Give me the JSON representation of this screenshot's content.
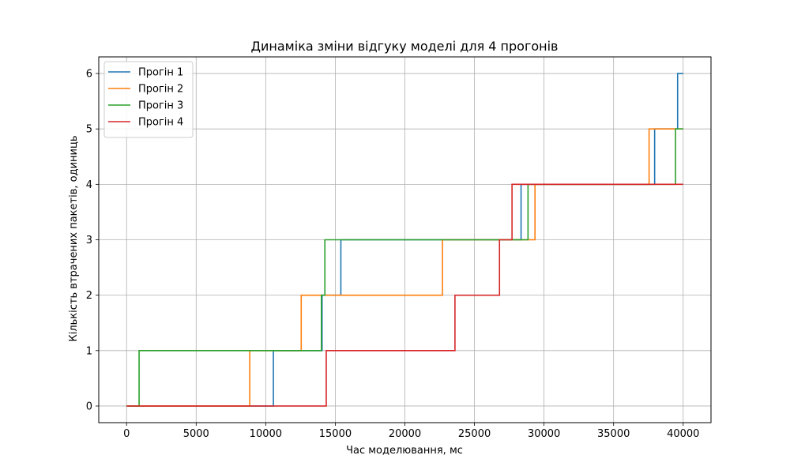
{
  "chart_data": {
    "type": "line",
    "step": "post",
    "title": "Динаміка зміни відгуку моделі для 4 прогонів",
    "xlabel": "Час моделювання, мс",
    "ylabel": "Кількість втрачених пакетів, одиниць",
    "xlim": [
      -2000,
      42000
    ],
    "ylim": [
      -0.3,
      6.3
    ],
    "xticks": [
      0,
      5000,
      10000,
      15000,
      20000,
      25000,
      30000,
      35000,
      40000
    ],
    "xtick_labels": [
      "0",
      "5000",
      "10000",
      "15000",
      "20000",
      "25000",
      "30000",
      "35000",
      "40000"
    ],
    "yticks": [
      0,
      1,
      2,
      3,
      4,
      5,
      6
    ],
    "ytick_labels": [
      "0",
      "1",
      "2",
      "3",
      "4",
      "5",
      "6"
    ],
    "grid": true,
    "legend_position": "top-left",
    "series": [
      {
        "name": "Прогін 1",
        "color": "#1f77b4",
        "x": [
          0,
          10550,
          14050,
          15400,
          28350,
          37950,
          39600,
          40000
        ],
        "y": [
          0,
          1,
          2,
          3,
          4,
          5,
          6,
          6
        ]
      },
      {
        "name": "Прогін 2",
        "color": "#ff7f0e",
        "x": [
          0,
          8850,
          12550,
          22700,
          29350,
          37550,
          40000
        ],
        "y": [
          0,
          1,
          2,
          3,
          4,
          5,
          5
        ]
      },
      {
        "name": "Прогін 3",
        "color": "#2ca02c",
        "x": [
          0,
          900,
          14000,
          14250,
          28850,
          39450,
          40000
        ],
        "y": [
          0,
          1,
          2,
          3,
          4,
          5,
          5
        ]
      },
      {
        "name": "Прогін 4",
        "color": "#d62728",
        "x": [
          0,
          14350,
          23600,
          26800,
          27700,
          40000
        ],
        "y": [
          0,
          1,
          2,
          3,
          4,
          4
        ]
      }
    ]
  }
}
